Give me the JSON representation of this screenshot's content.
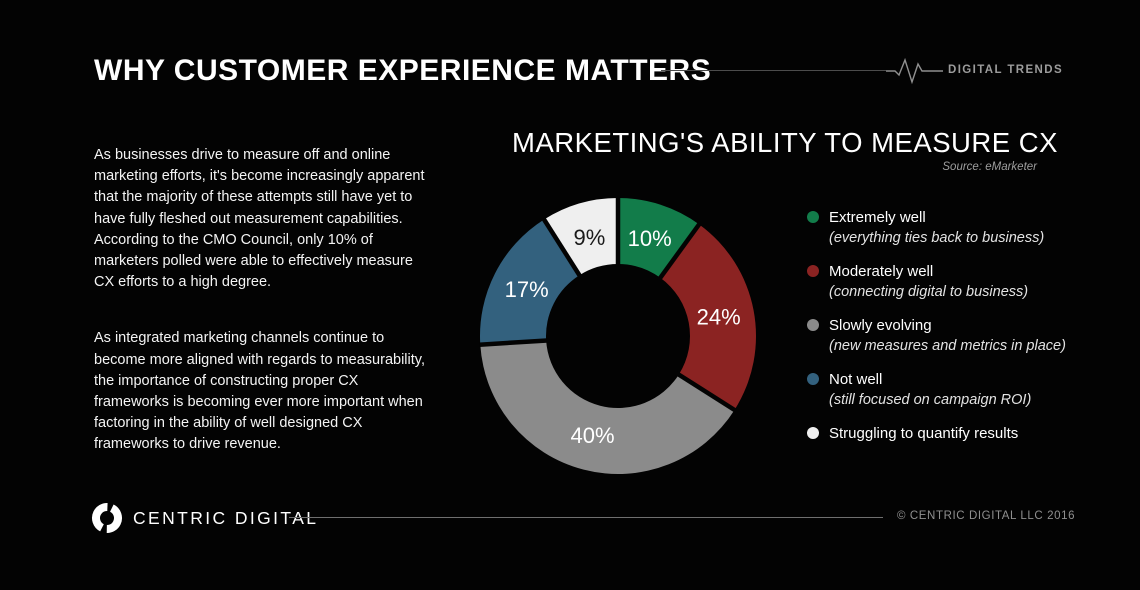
{
  "header": {
    "title": "WHY CUSTOMER EXPERIENCE MATTERS",
    "brand_tag": "DIGITAL TRENDS"
  },
  "icons": {
    "header_icon": "heartbeat-pulse-icon",
    "footer_logo": "centric-digital-ring-icon"
  },
  "intro": {
    "paragraph1": "As businesses drive to measure off and online marketing efforts, it's become increasingly apparent that the majority of these attempts still have yet to have fully fleshed out measurement capabilities. According to the CMO Council, only 10% of marketers polled were able to effectively measure CX efforts to a high degree.",
    "paragraph2": "As integrated marketing channels continue to become more aligned with regards to measurability, the importance of constructing proper CX frameworks is becoming ever more important when factoring in the ability of well designed CX frameworks to drive revenue."
  },
  "chart_data": {
    "type": "pie",
    "subtype": "donut",
    "title": "MARKETING'S ABILITY TO MEASURE CX",
    "source": "Source: eMarketer",
    "start_angle_deg": 0,
    "direction": "clockwise",
    "legend_position": "right",
    "background": "#030303",
    "segments": [
      {
        "label": "Extremely well",
        "sublabel": "(everything ties back to business)",
        "value": 10,
        "data_label": "10%",
        "color": "#127C4A",
        "text_color": "#ffffff"
      },
      {
        "label": "Moderately well",
        "sublabel": "(connecting digital to business)",
        "value": 24,
        "data_label": "24%",
        "color": "#8B2322",
        "text_color": "#ffffff"
      },
      {
        "label": "Slowly evolving",
        "sublabel": "(new measures and metrics in place)",
        "value": 40,
        "data_label": "40%",
        "color": "#8B8B8B",
        "text_color": "#ffffff"
      },
      {
        "label": "Not well",
        "sublabel": "(still focused on campaign ROI)",
        "value": 17,
        "data_label": "17%",
        "color": "#33617E",
        "text_color": "#ffffff"
      },
      {
        "label": "Struggling to quantify results",
        "sublabel": "",
        "value": 9,
        "data_label": "9%",
        "color": "#EFEFEF",
        "text_color": "#1A1A1A"
      }
    ]
  },
  "footer": {
    "brand": "CENTRIC DIGITAL",
    "copyright": "© CENTRIC DIGITAL LLC 2016"
  }
}
